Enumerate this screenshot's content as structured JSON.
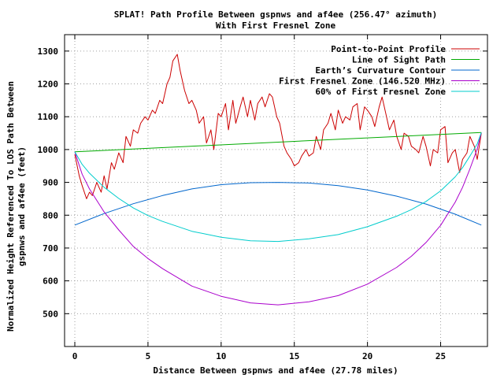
{
  "chart_data": {
    "type": "line",
    "title": "SPLAT! Path Profile Between gspnws and af4ee (256.47° azimuth)",
    "subtitle": "With First Fresnel Zone",
    "xlabel": "Distance Between gspnws and af4ee (27.78 miles)",
    "ylabel_line1": "Normalized Height Referenced To LOS Path Between",
    "ylabel_line2": "gspnws and af4ee (feet)",
    "xlim": [
      -0.7,
      28.2
    ],
    "ylim": [
      400,
      1350
    ],
    "x_ticks": [
      0,
      5,
      10,
      15,
      20,
      25
    ],
    "y_ticks": [
      500,
      600,
      700,
      800,
      900,
      1000,
      1100,
      1200,
      1300
    ],
    "grid": true,
    "legend_position": "top-right",
    "series": [
      {
        "name": "Point-to-Point Profile",
        "color": "#cc0000",
        "x": [
          0,
          0.3,
          0.5,
          0.8,
          1.0,
          1.2,
          1.5,
          1.8,
          2.0,
          2.2,
          2.5,
          2.7,
          3.0,
          3.3,
          3.5,
          3.8,
          4.0,
          4.3,
          4.5,
          4.8,
          5.0,
          5.3,
          5.5,
          5.8,
          6.0,
          6.3,
          6.5,
          6.7,
          7.0,
          7.2,
          7.5,
          7.8,
          8.0,
          8.3,
          8.5,
          8.8,
          9.0,
          9.3,
          9.5,
          9.8,
          10.0,
          10.3,
          10.5,
          10.8,
          11.0,
          11.3,
          11.5,
          11.8,
          12.0,
          12.3,
          12.5,
          12.8,
          13.0,
          13.3,
          13.5,
          13.8,
          14.0,
          14.3,
          14.5,
          14.8,
          15.0,
          15.3,
          15.5,
          15.8,
          16.0,
          16.3,
          16.5,
          16.8,
          17.0,
          17.3,
          17.5,
          17.8,
          18.0,
          18.3,
          18.5,
          18.8,
          19.0,
          19.3,
          19.5,
          19.8,
          20.0,
          20.3,
          20.5,
          20.8,
          21.0,
          21.3,
          21.5,
          21.8,
          22.0,
          22.3,
          22.5,
          22.8,
          23.0,
          23.3,
          23.5,
          23.8,
          24.0,
          24.3,
          24.5,
          24.8,
          25.0,
          25.3,
          25.5,
          25.8,
          26.0,
          26.3,
          26.5,
          26.8,
          27.0,
          27.3,
          27.5,
          27.78
        ],
        "y": [
          985,
          920,
          890,
          850,
          870,
          860,
          900,
          870,
          920,
          880,
          960,
          940,
          990,
          960,
          1040,
          1010,
          1060,
          1050,
          1080,
          1100,
          1090,
          1120,
          1110,
          1150,
          1140,
          1200,
          1220,
          1270,
          1290,
          1240,
          1180,
          1140,
          1150,
          1120,
          1080,
          1100,
          1020,
          1060,
          1000,
          1110,
          1100,
          1140,
          1060,
          1150,
          1080,
          1130,
          1160,
          1100,
          1150,
          1090,
          1140,
          1160,
          1130,
          1170,
          1160,
          1100,
          1080,
          1010,
          990,
          970,
          950,
          960,
          980,
          1000,
          980,
          990,
          1040,
          1000,
          1060,
          1080,
          1110,
          1060,
          1120,
          1080,
          1100,
          1090,
          1130,
          1140,
          1060,
          1130,
          1120,
          1100,
          1070,
          1130,
          1160,
          1100,
          1060,
          1090,
          1040,
          1000,
          1050,
          1040,
          1010,
          1000,
          990,
          1040,
          1010,
          950,
          1000,
          990,
          1060,
          1070,
          960,
          990,
          1000,
          930,
          970,
          990,
          1040,
          1010,
          970,
          1050
        ],
        "line_width": 1
      },
      {
        "name": "Line of Sight Path",
        "color": "#00aa00",
        "x": [
          0,
          27.78
        ],
        "y": [
          993,
          1052
        ]
      },
      {
        "name": "Earth’s Curvature Contour",
        "color": "#0066cc",
        "x": [
          0,
          2,
          4,
          6,
          8,
          10,
          12,
          13.89,
          16,
          18,
          20,
          22,
          24,
          26,
          27.78
        ],
        "y": [
          770,
          805,
          835,
          860,
          880,
          893,
          899,
          900,
          898,
          890,
          877,
          858,
          834,
          803,
          770
        ]
      },
      {
        "name": "First Fresnel Zone (146.520 MHz)",
        "color": "#aa00cc",
        "x": [
          0,
          0.5,
          1,
          2,
          3,
          4,
          5,
          6,
          8,
          10,
          12,
          13.89,
          16,
          18,
          20,
          22,
          23,
          24,
          25,
          26,
          26.5,
          27,
          27.5,
          27.78
        ],
        "y": [
          993,
          925,
          880,
          810,
          755,
          705,
          668,
          637,
          584,
          553,
          533,
          527,
          536,
          555,
          590,
          641,
          675,
          717,
          769,
          840,
          885,
          941,
          1002,
          1052
        ]
      },
      {
        "name": "60% of First Fresnel Zone",
        "color": "#00cccc",
        "x": [
          0,
          0.5,
          1,
          2,
          3,
          4,
          5,
          6,
          8,
          10,
          12,
          13.89,
          16,
          18,
          20,
          22,
          23,
          24,
          25,
          26,
          26.5,
          27,
          27.5,
          27.78
        ],
        "y": [
          993,
          955,
          928,
          885,
          851,
          822,
          799,
          781,
          751,
          733,
          722,
          720,
          728,
          741,
          765,
          797,
          817,
          842,
          874,
          917,
          945,
          980,
          1017,
          1052
        ]
      }
    ]
  }
}
